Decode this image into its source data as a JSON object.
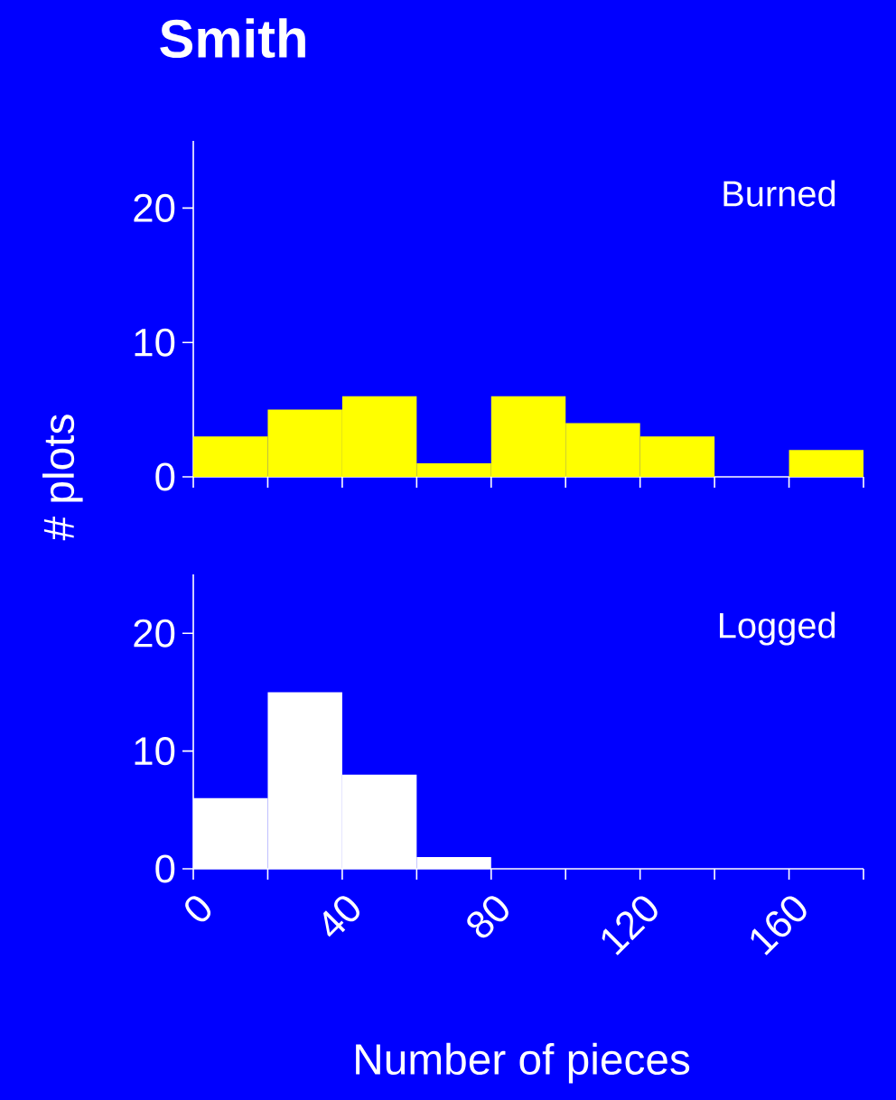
{
  "chart_data": [
    {
      "type": "histogram",
      "title": "Smith",
      "ylabel": "# plots",
      "annotations": [
        "Burned"
      ],
      "color": "#ffff00",
      "bins": [
        0,
        20,
        40,
        60,
        80,
        100,
        120,
        140,
        160,
        180
      ],
      "values": [
        3,
        5,
        6,
        1,
        6,
        4,
        3,
        0,
        2
      ],
      "xlim": [
        0,
        180
      ],
      "ylim": [
        0,
        25
      ],
      "xticks": [
        0,
        20,
        40,
        60,
        80,
        100,
        120,
        140,
        160,
        180
      ],
      "yticks": [
        0,
        10,
        20
      ],
      "tick_labels": "y"
    },
    {
      "type": "histogram",
      "xlabel": "Number of pieces",
      "annotations": [
        "Logged"
      ],
      "color": "#ffffff",
      "bins": [
        0,
        20,
        40,
        60,
        80,
        100,
        120,
        140,
        160,
        180
      ],
      "values": [
        6,
        15,
        8,
        1,
        0,
        0,
        0,
        0,
        0
      ],
      "xlim": [
        0,
        180
      ],
      "ylim": [
        0,
        25
      ],
      "xticks": [
        0,
        {
          "value": 20,
          "label": null
        },
        40,
        {
          "value": 60,
          "label": null
        },
        80,
        {
          "value": 100,
          "label": null
        },
        120,
        {
          "value": 140,
          "label": null
        },
        160,
        {
          "value": 180,
          "label": null
        }
      ],
      "yticks": [
        0,
        10,
        20
      ]
    }
  ]
}
